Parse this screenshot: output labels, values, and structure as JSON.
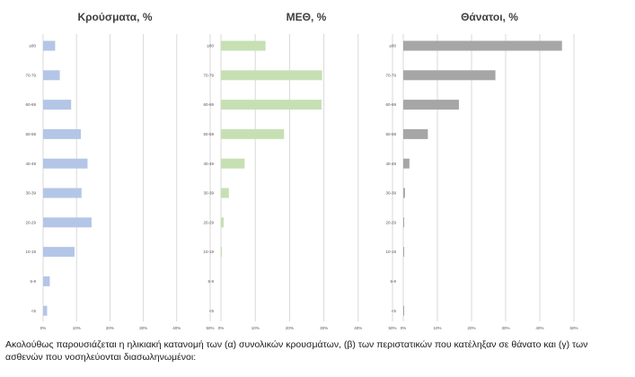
{
  "chart_data": [
    {
      "type": "bar",
      "orientation": "horizontal",
      "title": "Κρούσματα, %",
      "categories": [
        "≥80",
        "70-79",
        "60-69",
        "50-59",
        "40-49",
        "30-39",
        "20-29",
        "10-19",
        "5-9",
        "<5"
      ],
      "values": [
        3.6,
        5.0,
        8.4,
        11.3,
        13.3,
        11.5,
        14.5,
        9.4,
        2.0,
        1.2
      ],
      "xlim": [
        0,
        50
      ],
      "x_ticks": [
        "0%",
        "10%",
        "20%",
        "30%",
        "40%",
        "50%"
      ],
      "grid": true,
      "color": "#b4c6e7"
    },
    {
      "type": "bar",
      "orientation": "horizontal",
      "title": "ΜΕΘ, %",
      "categories": [
        "≥80",
        "70-79",
        "60-69",
        "50-59",
        "40-49",
        "30-39",
        "20-29",
        "10-19",
        "5-9",
        "<5"
      ],
      "values": [
        13.0,
        29.5,
        29.3,
        18.4,
        6.9,
        2.3,
        0.8,
        0.3,
        0,
        0
      ],
      "xlim": [
        0,
        50
      ],
      "x_ticks": [
        "0%",
        "10%",
        "20%",
        "30%",
        "40%",
        "50%"
      ],
      "grid": true,
      "color": "#c6e0b4"
    },
    {
      "type": "bar",
      "orientation": "horizontal",
      "title": "Θάνατοι, %",
      "categories": [
        "≥80",
        "70-79",
        "60-69",
        "50-59",
        "40-49",
        "30-39",
        "20-29",
        "10-19",
        "5-9",
        "<5"
      ],
      "values": [
        46.5,
        27.0,
        16.3,
        7.2,
        1.8,
        0.5,
        0.2,
        0.1,
        0,
        0.1
      ],
      "xlim": [
        0,
        50
      ],
      "x_ticks": [
        "0%",
        "10%",
        "20%",
        "30%",
        "40%",
        "50%"
      ],
      "grid": true,
      "color": "#a6a6a6"
    }
  ],
  "caption": "Ακολούθως παρουσιάζεται η ηλικιακή κατανομή των (α) συνολικών κρουσμάτων, (β) των περιστατικών που κατέληξαν σε θάνατο και (γ) των ασθενών που νοσηλεύονται διασωληνωμένοι:"
}
